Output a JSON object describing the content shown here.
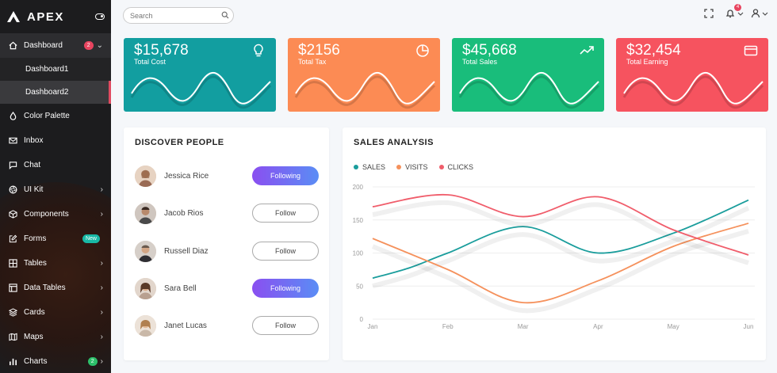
{
  "app": {
    "name": "APEX"
  },
  "sidebar": {
    "items": [
      {
        "label": "Dashboard",
        "icon": "home-icon",
        "badge": "2",
        "chevron": "⌄"
      },
      {
        "label": "Color Palette",
        "icon": "droplet-icon"
      },
      {
        "label": "Inbox",
        "icon": "mail-icon"
      },
      {
        "label": "Chat",
        "icon": "chat-icon"
      },
      {
        "label": "UI Kit",
        "icon": "aperture-icon",
        "chevron": "›"
      },
      {
        "label": "Components",
        "icon": "box-icon",
        "chevron": "›"
      },
      {
        "label": "Forms",
        "icon": "edit-icon",
        "badge": "New"
      },
      {
        "label": "Tables",
        "icon": "grid-icon",
        "chevron": "›"
      },
      {
        "label": "Data Tables",
        "icon": "layout-icon",
        "chevron": "›"
      },
      {
        "label": "Cards",
        "icon": "layers-icon",
        "chevron": "›"
      },
      {
        "label": "Maps",
        "icon": "map-icon",
        "chevron": "›"
      },
      {
        "label": "Charts",
        "icon": "bar-chart-icon",
        "badge": "2",
        "chevron": "›"
      }
    ],
    "submenu": [
      {
        "label": "Dashboard1"
      },
      {
        "label": "Dashboard2"
      }
    ]
  },
  "search": {
    "placeholder": "Search"
  },
  "notifications": {
    "count": "4"
  },
  "stats": [
    {
      "value": "$15,678",
      "caption": "Total Cost",
      "icon": "bulb-icon",
      "color": "#129ea0"
    },
    {
      "value": "$2156",
      "caption": "Total Tax",
      "icon": "pie-chart-icon",
      "color": "#fc8b54"
    },
    {
      "value": "$45,668",
      "caption": "Total Sales",
      "icon": "trending-up-icon",
      "color": "#19bd7b"
    },
    {
      "value": "$32,454",
      "caption": "Total Earning",
      "icon": "wallet-icon",
      "color": "#f6535f"
    }
  ],
  "discover": {
    "title": "DISCOVER PEOPLE",
    "people": [
      {
        "name": "Jessica Rice",
        "button": "Following",
        "state": "following"
      },
      {
        "name": "Jacob Rios",
        "button": "Follow",
        "state": "follow"
      },
      {
        "name": "Russell Diaz",
        "button": "Follow",
        "state": "follow"
      },
      {
        "name": "Sara Bell",
        "button": "Following",
        "state": "following"
      },
      {
        "name": "Janet Lucas",
        "button": "Follow",
        "state": "follow"
      }
    ]
  },
  "sales": {
    "title": "SALES ANALYSIS"
  },
  "chart_data": {
    "type": "line",
    "x": [
      "Jan",
      "Feb",
      "Mar",
      "Apr",
      "May",
      "Jun"
    ],
    "ylim": [
      0,
      200
    ],
    "yticks": [
      0,
      50,
      100,
      150,
      200
    ],
    "series": [
      {
        "name": "SALES",
        "color": "#1a9d9c",
        "points": [
          [
            0,
            62
          ],
          [
            0.5,
            78
          ],
          [
            1,
            100
          ],
          [
            2,
            140
          ],
          [
            3,
            100
          ],
          [
            4,
            130
          ],
          [
            5,
            180
          ]
        ]
      },
      {
        "name": "VISITS",
        "color": "#f5915c",
        "points": [
          [
            0,
            122
          ],
          [
            1,
            75
          ],
          [
            2,
            25
          ],
          [
            3,
            58
          ],
          [
            4,
            110
          ],
          [
            5,
            145
          ]
        ]
      },
      {
        "name": "CLICKS",
        "color": "#f05d6b",
        "points": [
          [
            0,
            170
          ],
          [
            1,
            188
          ],
          [
            2,
            155
          ],
          [
            3,
            185
          ],
          [
            4,
            135
          ],
          [
            5,
            97
          ]
        ]
      }
    ]
  }
}
